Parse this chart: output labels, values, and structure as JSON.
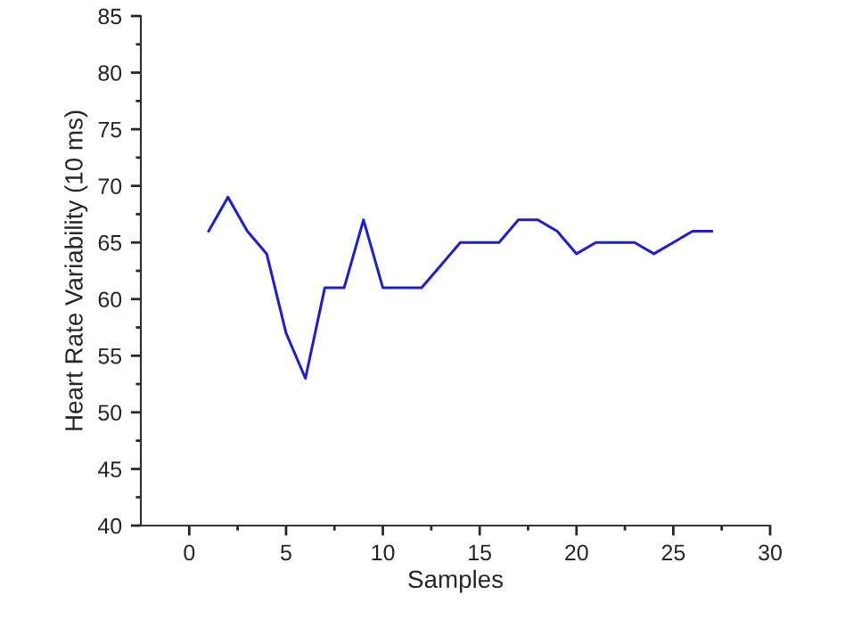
{
  "chart_data": {
    "type": "line",
    "xlabel": "Samples",
    "ylabel": "Heart Rate Variability (10 ms)",
    "x": [
      1,
      2,
      3,
      4,
      5,
      6,
      7,
      8,
      9,
      10,
      11,
      12,
      13,
      14,
      15,
      16,
      17,
      18,
      19,
      20,
      21,
      22,
      23,
      24,
      25,
      26,
      27
    ],
    "series": [
      {
        "color": "#2020d0",
        "values": [
          66,
          69,
          66,
          64,
          57,
          53,
          61,
          61,
          67,
          61,
          61,
          61,
          63,
          65,
          65,
          65,
          67,
          67,
          66,
          64,
          65,
          65,
          65,
          64,
          65,
          66,
          66
        ]
      }
    ],
    "xlim": [
      -2.5,
      30
    ],
    "xticks": [
      0,
      5,
      10,
      15,
      20,
      25,
      30
    ],
    "ylim": [
      40,
      85
    ],
    "yticks": [
      40,
      45,
      50,
      55,
      60,
      65,
      70,
      75,
      80,
      85
    ],
    "grid": false,
    "legend": false,
    "marker": "none",
    "line_style": "solid"
  }
}
